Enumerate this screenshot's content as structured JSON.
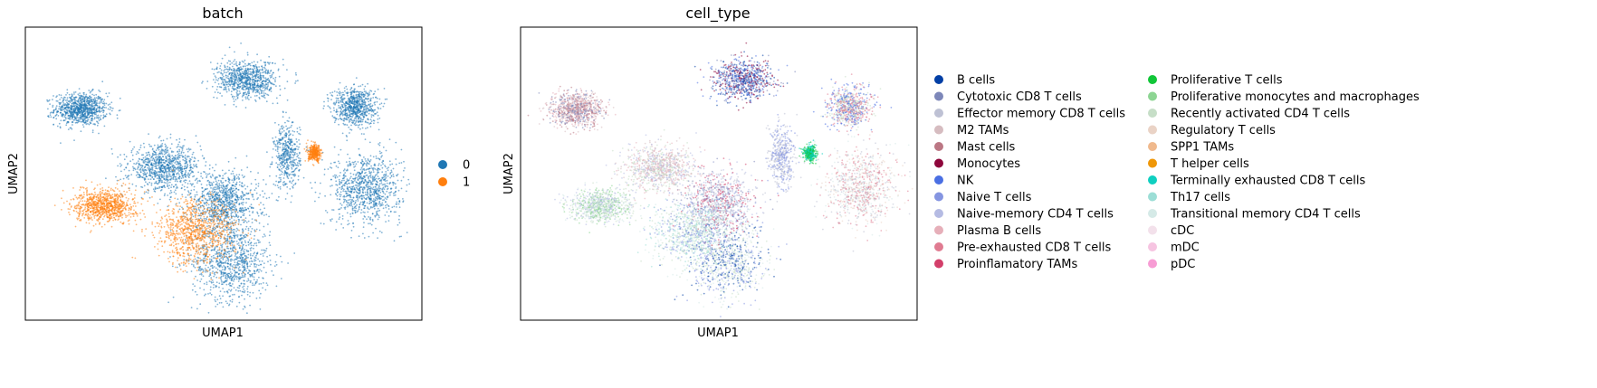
{
  "chart_data": [
    {
      "type": "scatter",
      "title": "batch",
      "xlabel": "UMAP1",
      "ylabel": "UMAP2",
      "grid": false,
      "ticks": false,
      "legend_placement": "right",
      "colors": {
        "0": "#1f77b4",
        "1": "#ff7f0e"
      },
      "legend": [
        {
          "label": "0",
          "color": "#1f77b4"
        },
        {
          "label": "1",
          "color": "#ff7f0e"
        }
      ],
      "clusters": [
        {
          "series": "0",
          "center": [
            0.14,
            0.72
          ],
          "spread": [
            0.06,
            0.05
          ],
          "density": 1.0
        },
        {
          "series": "0",
          "center": [
            0.52,
            0.2
          ],
          "spread": [
            0.09,
            0.12
          ],
          "density": 1.0
        },
        {
          "series": "0",
          "center": [
            0.5,
            0.4
          ],
          "spread": [
            0.08,
            0.1
          ],
          "density": 1.0
        },
        {
          "series": "0",
          "center": [
            0.35,
            0.52
          ],
          "spread": [
            0.08,
            0.07
          ],
          "density": 1.0
        },
        {
          "series": "0",
          "center": [
            0.66,
            0.56
          ],
          "spread": [
            0.03,
            0.1
          ],
          "density": 0.5
        },
        {
          "series": "0",
          "center": [
            0.86,
            0.45
          ],
          "spread": [
            0.08,
            0.11
          ],
          "density": 1.0
        },
        {
          "series": "0",
          "center": [
            0.83,
            0.73
          ],
          "spread": [
            0.05,
            0.06
          ],
          "density": 0.8
        },
        {
          "series": "0",
          "center": [
            0.56,
            0.82
          ],
          "spread": [
            0.07,
            0.06
          ],
          "density": 0.9
        },
        {
          "series": "1",
          "center": [
            0.2,
            0.39
          ],
          "spread": [
            0.07,
            0.05
          ],
          "density": 1.0
        },
        {
          "series": "1",
          "center": [
            0.43,
            0.3
          ],
          "spread": [
            0.09,
            0.1
          ],
          "density": 1.0
        },
        {
          "series": "1",
          "center": [
            0.73,
            0.57
          ],
          "spread": [
            0.015,
            0.025
          ],
          "density": 0.4
        }
      ]
    },
    {
      "type": "scatter",
      "title": "cell_type",
      "xlabel": "UMAP1",
      "ylabel": "UMAP2",
      "grid": false,
      "ticks": false,
      "legend_placement": "right",
      "legend": [
        {
          "label": "B cells",
          "color": "#023fa5"
        },
        {
          "label": "Cytotoxic CD8 T cells",
          "color": "#7d87b9"
        },
        {
          "label": "Effector memory CD8 T cells",
          "color": "#bec1d4"
        },
        {
          "label": "M2 TAMs",
          "color": "#d6bcc0"
        },
        {
          "label": "Mast cells",
          "color": "#bb7784"
        },
        {
          "label": "Monocytes",
          "color": "#8e063b"
        },
        {
          "label": "NK",
          "color": "#4a6fe3"
        },
        {
          "label": "Naive T cells",
          "color": "#8595e1"
        },
        {
          "label": "Naive-memory CD4 T cells",
          "color": "#b5bbe3"
        },
        {
          "label": "Plasma B cells",
          "color": "#e6afb9"
        },
        {
          "label": "Pre-exhausted CD8 T cells",
          "color": "#e07b91"
        },
        {
          "label": "Proinflamatory TAMs",
          "color": "#d33f6a"
        },
        {
          "label": "Proliferative T cells",
          "color": "#11c638"
        },
        {
          "label": "Proliferative monocytes and macrophages",
          "color": "#8dd593"
        },
        {
          "label": "Recently activated CD4 T cells",
          "color": "#c6dec7"
        },
        {
          "label": "Regulatory T cells",
          "color": "#ead3c6"
        },
        {
          "label": "SPP1 TAMs",
          "color": "#f0b98d"
        },
        {
          "label": "T helper cells",
          "color": "#ef9708"
        },
        {
          "label": "Terminally exhausted CD8 T cells",
          "color": "#0fcfc0"
        },
        {
          "label": "Th17 cells",
          "color": "#9cded6"
        },
        {
          "label": "Transitional memory CD4 T cells",
          "color": "#d5eae7"
        },
        {
          "label": "cDC",
          "color": "#f3e1eb"
        },
        {
          "label": "mDC",
          "color": "#f6c4e1"
        },
        {
          "label": "pDC",
          "color": "#f79cd4"
        }
      ],
      "clusters": [
        {
          "center": [
            0.14,
            0.72
          ],
          "spread": [
            0.06,
            0.05
          ],
          "density": 1.0,
          "mix": [
            "Mast cells",
            "Plasma B cells",
            "Cytotoxic CD8 T cells",
            "M2 TAMs"
          ]
        },
        {
          "center": [
            0.52,
            0.2
          ],
          "spread": [
            0.09,
            0.12
          ],
          "density": 1.0,
          "mix": [
            "Recently activated CD4 T cells",
            "Naive T cells",
            "B cells",
            "Transitional memory CD4 T cells"
          ]
        },
        {
          "center": [
            0.5,
            0.4
          ],
          "spread": [
            0.08,
            0.1
          ],
          "density": 1.0,
          "mix": [
            "Naive-memory CD4 T cells",
            "Cytotoxic CD8 T cells",
            "Effector memory CD8 T cells",
            "Proinflamatory TAMs"
          ]
        },
        {
          "center": [
            0.35,
            0.52
          ],
          "spread": [
            0.08,
            0.07
          ],
          "density": 1.0,
          "mix": [
            "M2 TAMs",
            "Plasma B cells",
            "Naive-memory CD4 T cells",
            "Recently activated CD4 T cells"
          ]
        },
        {
          "center": [
            0.66,
            0.56
          ],
          "spread": [
            0.03,
            0.1
          ],
          "density": 0.5,
          "mix": [
            "Naive T cells",
            "Effector memory CD8 T cells"
          ]
        },
        {
          "center": [
            0.86,
            0.45
          ],
          "spread": [
            0.08,
            0.11
          ],
          "density": 1.0,
          "mix": [
            "Transitional memory CD4 T cells",
            "Effector memory CD8 T cells",
            "Pre-exhausted CD8 T cells",
            "Regulatory T cells"
          ]
        },
        {
          "center": [
            0.83,
            0.73
          ],
          "spread": [
            0.05,
            0.06
          ],
          "density": 0.8,
          "mix": [
            "Recently activated CD4 T cells",
            "NK",
            "Pre-exhausted CD8 T cells"
          ]
        },
        {
          "center": [
            0.56,
            0.82
          ],
          "spread": [
            0.07,
            0.06
          ],
          "density": 0.9,
          "mix": [
            "B cells",
            "NK",
            "Monocytes",
            "Cytotoxic CD8 T cells"
          ]
        },
        {
          "center": [
            0.2,
            0.39
          ],
          "spread": [
            0.07,
            0.05
          ],
          "density": 1.0,
          "mix": [
            "Proliferative monocytes and macrophages",
            "Naive-memory CD4 T cells",
            "Transitional memory CD4 T cells",
            "Recently activated CD4 T cells"
          ]
        },
        {
          "center": [
            0.43,
            0.3
          ],
          "spread": [
            0.09,
            0.1
          ],
          "density": 1.0,
          "mix": [
            "Th17 cells",
            "Recently activated CD4 T cells",
            "Naive T cells",
            "Transitional memory CD4 T cells"
          ]
        },
        {
          "center": [
            0.73,
            0.57
          ],
          "spread": [
            0.015,
            0.025
          ],
          "density": 0.4,
          "mix": [
            "Terminally exhausted CD8 T cells",
            "Proliferative T cells"
          ]
        }
      ]
    }
  ]
}
